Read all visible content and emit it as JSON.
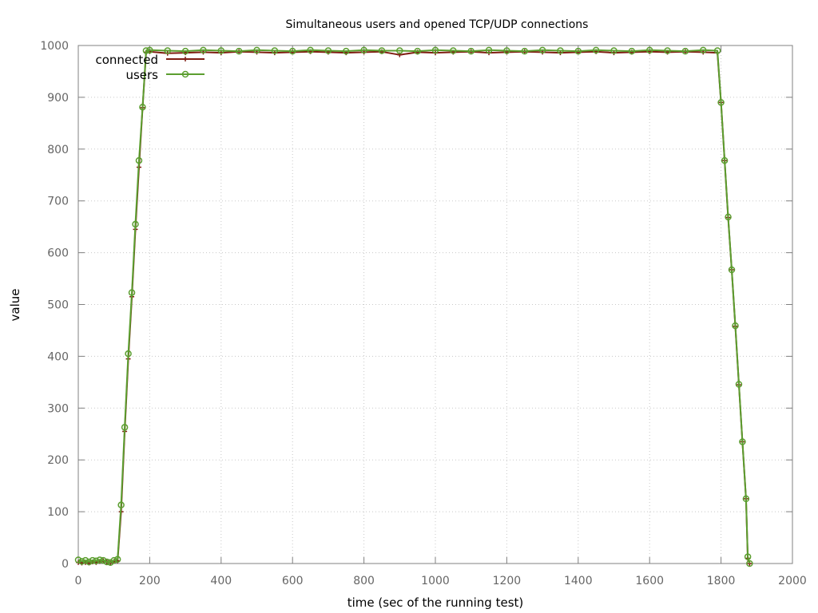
{
  "chart_data": {
    "type": "line",
    "title": "Simultaneous users and opened TCP/UDP connections",
    "xlabel": "time (sec of the running test)",
    "ylabel": "value",
    "xlim": [
      0,
      2000
    ],
    "ylim": [
      0,
      1000
    ],
    "x_ticks": [
      "0",
      "200",
      "400",
      "600",
      "800",
      "1000",
      "1200",
      "1400",
      "1600",
      "1800",
      "2000"
    ],
    "y_ticks": [
      "0",
      "100",
      "200",
      "300",
      "400",
      "500",
      "600",
      "700",
      "800",
      "900",
      "1000"
    ],
    "grid": true,
    "legend": "top-left",
    "series": [
      {
        "name": "connected",
        "color": "#7f1d12",
        "marker": "plus",
        "x": [
          0,
          10,
          20,
          30,
          40,
          50,
          60,
          70,
          80,
          90,
          100,
          110,
          120,
          130,
          140,
          150,
          160,
          170,
          180,
          190,
          200,
          250,
          300,
          350,
          400,
          450,
          500,
          550,
          600,
          650,
          700,
          750,
          800,
          850,
          900,
          950,
          1000,
          1050,
          1100,
          1150,
          1200,
          1250,
          1300,
          1350,
          1400,
          1450,
          1500,
          1550,
          1600,
          1650,
          1700,
          1750,
          1790,
          1800,
          1810,
          1820,
          1830,
          1840,
          1850,
          1860,
          1870,
          1875,
          1880
        ],
        "values": [
          2,
          1,
          2,
          1,
          3,
          2,
          4,
          5,
          3,
          1,
          4,
          5,
          100,
          255,
          395,
          515,
          645,
          765,
          880,
          987,
          988,
          985,
          986,
          987,
          986,
          988,
          987,
          986,
          987,
          988,
          987,
          986,
          987,
          988,
          982,
          987,
          986,
          987,
          988,
          986,
          987,
          988,
          987,
          986,
          987,
          988,
          986,
          987,
          988,
          987,
          988,
          987,
          986,
          890,
          778,
          668,
          567,
          458,
          345,
          235,
          125,
          10,
          0
        ]
      },
      {
        "name": "users",
        "color": "#5b9e2f",
        "marker": "circle",
        "x": [
          0,
          10,
          20,
          30,
          40,
          50,
          60,
          70,
          80,
          90,
          100,
          110,
          120,
          130,
          140,
          150,
          160,
          170,
          180,
          190,
          200,
          250,
          300,
          350,
          400,
          450,
          500,
          550,
          600,
          650,
          700,
          750,
          800,
          850,
          900,
          950,
          1000,
          1050,
          1100,
          1150,
          1200,
          1250,
          1300,
          1350,
          1400,
          1450,
          1500,
          1550,
          1600,
          1650,
          1700,
          1750,
          1790,
          1800,
          1810,
          1820,
          1830,
          1840,
          1850,
          1860,
          1870,
          1875,
          1880
        ],
        "values": [
          7,
          4,
          6,
          3,
          6,
          5,
          7,
          6,
          3,
          2,
          6,
          8,
          113,
          263,
          405,
          523,
          655,
          778,
          881,
          990,
          991,
          990,
          989,
          991,
          990,
          989,
          991,
          990,
          989,
          991,
          990,
          989,
          991,
          990,
          990,
          989,
          991,
          990,
          989,
          991,
          990,
          989,
          991,
          990,
          989,
          991,
          990,
          989,
          991,
          990,
          989,
          991,
          990,
          890,
          778,
          669,
          567,
          459,
          346,
          235,
          125,
          13,
          0
        ]
      }
    ]
  }
}
